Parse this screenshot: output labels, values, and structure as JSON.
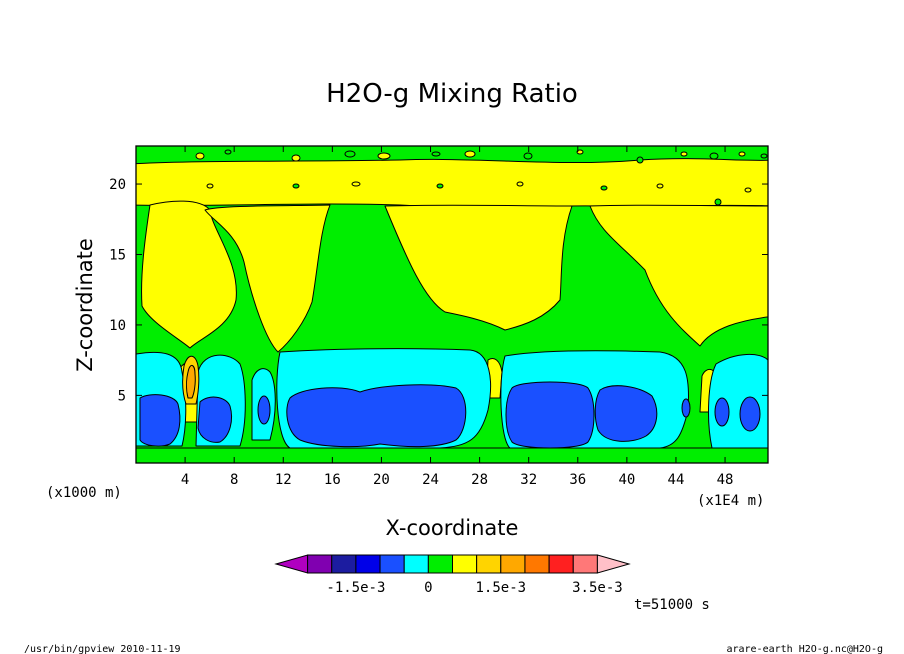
{
  "chart_data": {
    "type": "heatmap",
    "title": "H2O-g Mixing Ratio",
    "xlabel": "X-coordinate",
    "ylabel": "Z-coordinate",
    "x_unit_label": "(x1E4 m)",
    "y_unit_label": "(x1000 m)",
    "xlim": [
      0.0,
      51.5
    ],
    "ylim": [
      0.2,
      22.7
    ],
    "x_ticks": [
      4,
      8,
      12,
      16,
      20,
      24,
      28,
      32,
      36,
      40,
      44,
      48
    ],
    "y_ticks": [
      5,
      10,
      15,
      20
    ],
    "colorbar": {
      "levels": [
        -0.0025,
        -0.002,
        -0.0015,
        -0.001,
        -0.0005,
        0,
        0.0005,
        0.001,
        0.0015,
        0.002,
        0.0025,
        0.003,
        0.0035
      ],
      "colors": [
        "#b000c0",
        "#8000b0",
        "#1c1ca0",
        "#0000e8",
        "#1a50ff",
        "#00ffff",
        "#00ee00",
        "#ffff00",
        "#ffd400",
        "#ffa800",
        "#ff7800",
        "#ff2020",
        "#ff7878",
        "#ffc0c8"
      ],
      "labels": [
        "-1.5e-3",
        "0",
        "1.5e-3",
        "3.5e-3"
      ],
      "label_levels": [
        -0.0015,
        0,
        0.0015,
        0.0035
      ]
    },
    "bands": [
      {
        "level": "0 to 0.5e-3",
        "color": "#00ee00"
      },
      {
        "level": "0.5e-3 to 1.0e-3",
        "color": "#ffff00"
      },
      {
        "level": "-0.5e-3 to 0",
        "color": "#00ffff"
      },
      {
        "level": "-1.0e-3 to -0.5e-3",
        "color": "#1a50ff"
      },
      {
        "level": "1.0e-3 to 1.5e-3",
        "color": "#ffd400"
      },
      {
        "level": "1.5e-3 to 2.0e-3",
        "color": "#ffa800"
      }
    ],
    "annotation_time": "t=51000 s"
  },
  "footer": {
    "left": "/usr/bin/gpview   2010-11-19",
    "right": "arare-earth_H2O-g.nc@H2O-g"
  }
}
